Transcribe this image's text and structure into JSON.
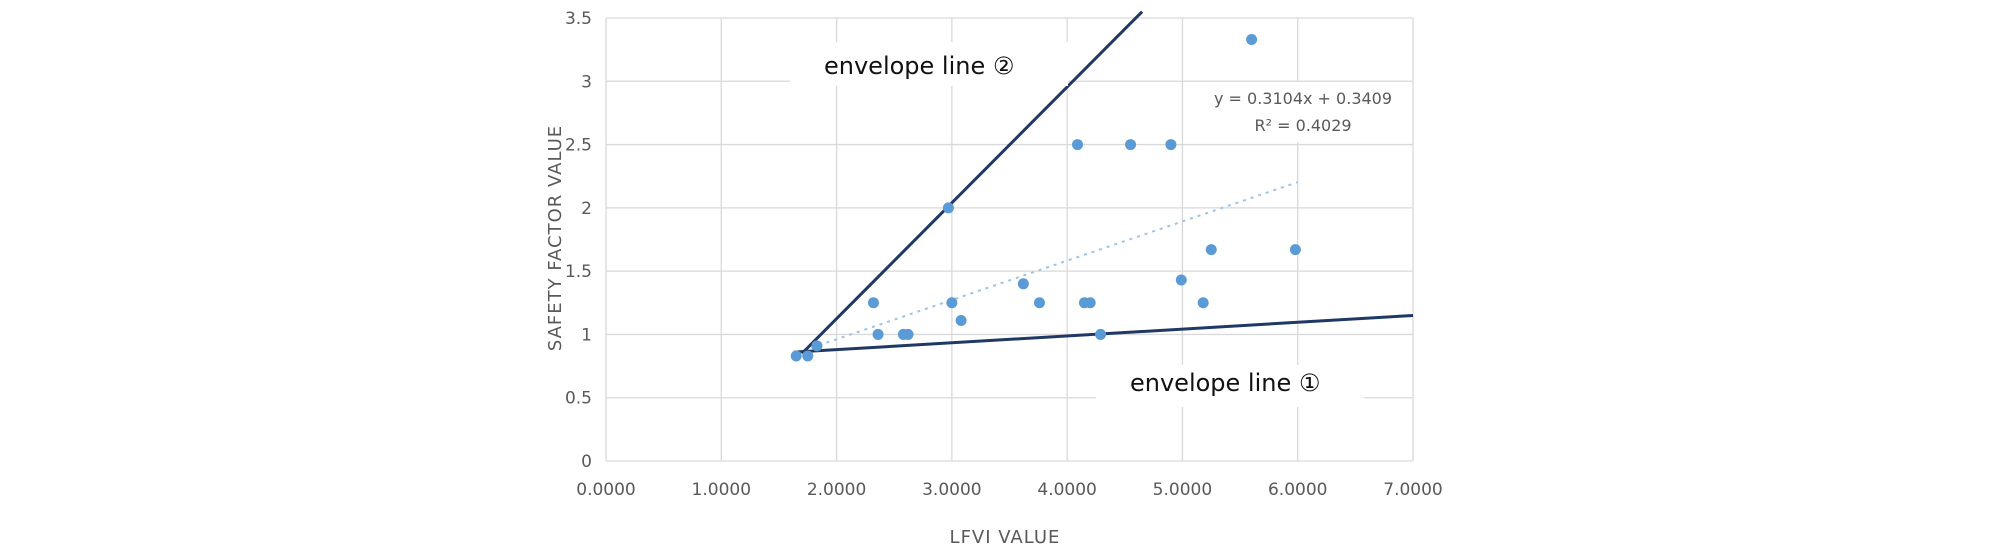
{
  "chart_data": {
    "type": "scatter",
    "title": "",
    "xlabel": "LFVI VALUE",
    "ylabel": "SAFETY FACTOR VALUE",
    "xlim": [
      0,
      7
    ],
    "ylim": [
      0,
      3.5
    ],
    "x_ticks": [
      "0.0000",
      "1.0000",
      "2.0000",
      "3.0000",
      "4.0000",
      "5.0000",
      "6.0000",
      "7.0000"
    ],
    "y_ticks": [
      "0",
      "0.5",
      "1",
      "1.5",
      "2",
      "2.5",
      "3",
      "3.5"
    ],
    "grid": true,
    "points_color": "#5b9bd5",
    "envelope_color": "#1f3864",
    "points": [
      [
        1.65,
        0.83
      ],
      [
        1.75,
        0.83
      ],
      [
        1.83,
        0.91
      ],
      [
        2.32,
        1.25
      ],
      [
        2.36,
        1.0
      ],
      [
        2.58,
        1.0
      ],
      [
        2.62,
        1.0
      ],
      [
        2.97,
        2.0
      ],
      [
        3.0,
        1.25
      ],
      [
        3.08,
        1.11
      ],
      [
        3.62,
        1.4
      ],
      [
        3.76,
        1.25
      ],
      [
        4.09,
        2.5
      ],
      [
        4.15,
        1.25
      ],
      [
        4.2,
        1.25
      ],
      [
        4.29,
        1.0
      ],
      [
        4.55,
        2.5
      ],
      [
        4.9,
        2.5
      ],
      [
        4.99,
        1.43
      ],
      [
        5.18,
        1.25
      ],
      [
        5.25,
        1.67
      ],
      [
        5.6,
        3.33
      ],
      [
        5.98,
        1.67
      ]
    ],
    "trendline": {
      "slope": 0.3104,
      "intercept": 0.3409,
      "x_range": [
        1.65,
        6.0
      ],
      "equation": "y = 0.3104x + 0.3409",
      "r_squared": "R² = 0.4029"
    },
    "envelope_lines": [
      {
        "label": "envelope line ②",
        "from": [
          1.7,
          0.85
        ],
        "to": [
          4.65,
          3.55
        ]
      },
      {
        "label": "envelope line ①",
        "from": [
          1.63,
          0.86
        ],
        "to": [
          7.0,
          1.15
        ]
      }
    ]
  }
}
